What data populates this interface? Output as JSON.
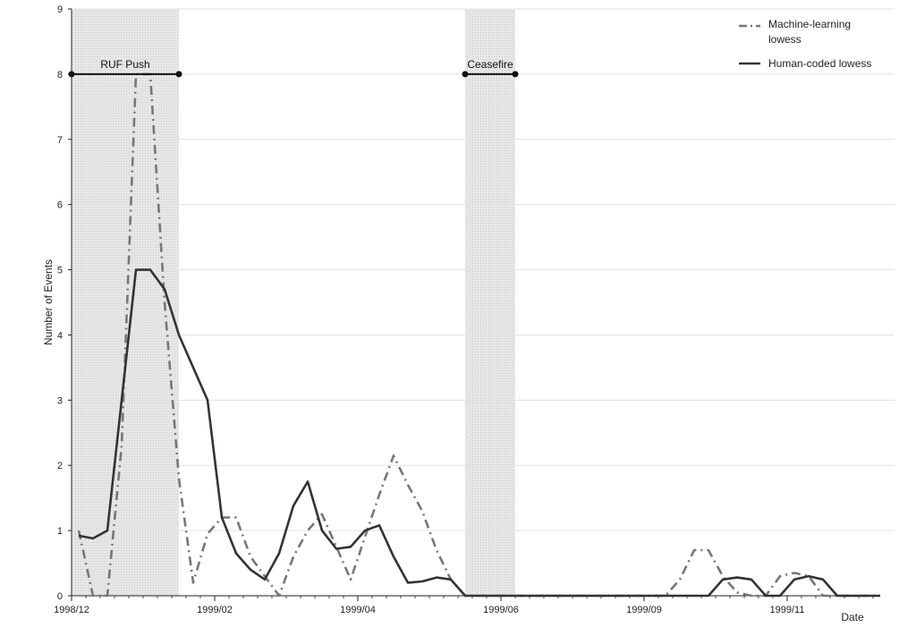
{
  "chart_data": {
    "type": "line",
    "title": "",
    "xlabel": "Date",
    "ylabel": "Number of Events",
    "x_tick_labels": [
      "1998/12",
      "1999/02",
      "1999/04",
      "1999/06",
      "1999/09",
      "1999/11"
    ],
    "x_tick_pos": [
      0,
      10,
      20,
      30,
      40,
      50
    ],
    "ylim": [
      0,
      9
    ],
    "y_ticks": [
      0,
      1,
      2,
      3,
      4,
      5,
      6,
      7,
      8,
      9
    ],
    "grid": "horizontal",
    "legend_position": "top-right",
    "x": [
      0.5,
      1.5,
      2.5,
      3.5,
      4.5,
      5.5,
      6.5,
      7.5,
      8.5,
      9.5,
      10.5,
      11.5,
      12.5,
      13.5,
      14.5,
      15.5,
      16.5,
      17.5,
      18.5,
      19.5,
      20.5,
      21.5,
      22.5,
      23.5,
      24.5,
      25.5,
      26.5,
      27.5,
      28.5,
      29.5,
      30.5,
      31.5,
      32.5,
      33.5,
      34.5,
      35.5,
      36.5,
      37.5,
      38.5,
      39.5,
      40.5,
      41.5,
      42.5,
      43.5,
      44.5,
      45.5,
      46.5,
      47.5,
      48.5,
      49.5,
      50.5,
      51.5,
      52.5,
      53.5,
      54.5,
      55.5,
      56.5
    ],
    "series": [
      {
        "name": "Machine-learning lowess",
        "style": "dashdot",
        "color": "#777777",
        "values": [
          1.0,
          0,
          0,
          2.3,
          8.0,
          8.0,
          4.5,
          1.8,
          0.2,
          0.95,
          1.2,
          1.2,
          0.6,
          0.3,
          0,
          0.6,
          1.0,
          1.25,
          0.75,
          0.25,
          0.9,
          1.55,
          2.15,
          1.7,
          1.3,
          0.7,
          0.25,
          0,
          0,
          0,
          0,
          0,
          0,
          0,
          0,
          0,
          0,
          0,
          0,
          0,
          0,
          0,
          0.25,
          0.7,
          0.7,
          0.3,
          0.05,
          0,
          0,
          0.3,
          0.35,
          0.3,
          0,
          0,
          0,
          0,
          0
        ]
      },
      {
        "name": "Human-coded lowess",
        "style": "solid",
        "color": "#333333",
        "values": [
          0.92,
          0.88,
          1.0,
          3.0,
          5.0,
          5.0,
          4.7,
          4.0,
          3.5,
          3.0,
          1.2,
          0.65,
          0.4,
          0.25,
          0.65,
          1.38,
          1.75,
          1.0,
          0.72,
          0.75,
          1.0,
          1.08,
          0.6,
          0.2,
          0.22,
          0.28,
          0.25,
          0,
          0,
          0,
          0,
          0,
          0,
          0,
          0,
          0,
          0,
          0,
          0,
          0,
          0,
          0,
          0,
          0,
          0,
          0.25,
          0.28,
          0.25,
          0,
          0,
          0.25,
          0.3,
          0.25,
          0,
          0,
          0,
          0
        ]
      }
    ],
    "shaded_periods": [
      {
        "label": "RUF Push",
        "x_start": 0,
        "x_end": 7.5,
        "level": 8
      },
      {
        "label": "Ceasefire",
        "x_start": 27.5,
        "x_end": 31,
        "level": 8
      }
    ]
  }
}
